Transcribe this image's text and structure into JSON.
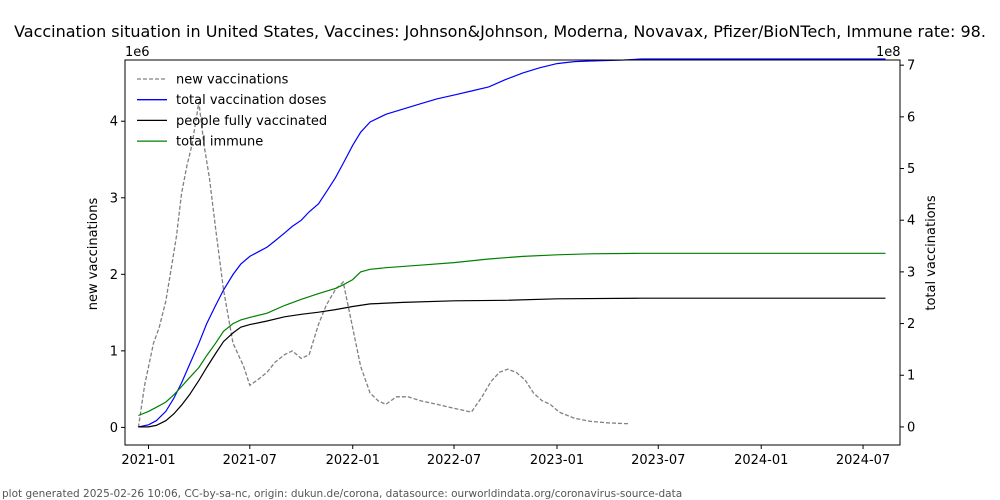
{
  "chart_data": {
    "type": "line",
    "title": "Vaccination situation in United States, Vaccines: Johnson&Johnson, Moderna, Novavax, Pfizer/BioNTech, Immune rate: 98.",
    "xlabel": "",
    "ylabel_left": "new vaccinations",
    "ylabel_right": "total vaccinations",
    "left_offset_text": "1e6",
    "right_offset_text": "1e8",
    "x_ticks": [
      "2021-01",
      "2021-07",
      "2022-01",
      "2022-07",
      "2023-01",
      "2023-07",
      "2024-01",
      "2024-07"
    ],
    "x_range": [
      "2020-11-20",
      "2024-09-05"
    ],
    "ylim_left": [
      -0.23,
      4.8
    ],
    "yticks_left": [
      0,
      1,
      2,
      3,
      4
    ],
    "ylim_right": [
      -0.35,
      7.1
    ],
    "yticks_right": [
      0,
      1,
      2,
      3,
      4,
      5,
      6,
      7
    ],
    "legend_position": "top-left",
    "grid": false,
    "colors": {
      "new vaccinations": "#808080",
      "total vaccination doses": "#0000ff",
      "people fully vaccinated": "#000000",
      "total immune": "#008000"
    },
    "series": [
      {
        "name": "new vaccinations",
        "axis": "left",
        "style": "dashed",
        "x": [
          "2020-12-14",
          "2020-12-25",
          "2021-01-10",
          "2021-01-20",
          "2021-02-01",
          "2021-02-10",
          "2021-02-20",
          "2021-03-01",
          "2021-03-10",
          "2021-03-20",
          "2021-04-01",
          "2021-04-10",
          "2021-04-20",
          "2021-05-01",
          "2021-05-15",
          "2021-06-01",
          "2021-06-20",
          "2021-07-01",
          "2021-07-15",
          "2021-08-01",
          "2021-08-15",
          "2021-09-01",
          "2021-09-15",
          "2021-10-01",
          "2021-10-15",
          "2021-11-01",
          "2021-11-15",
          "2021-12-01",
          "2021-12-15",
          "2022-01-01",
          "2022-01-15",
          "2022-02-01",
          "2022-02-15",
          "2022-03-01",
          "2022-03-20",
          "2022-04-10",
          "2022-05-01",
          "2022-06-01",
          "2022-07-01",
          "2022-08-01",
          "2022-08-20",
          "2022-09-05",
          "2022-09-20",
          "2022-10-05",
          "2022-10-20",
          "2022-11-05",
          "2022-11-20",
          "2022-12-05",
          "2022-12-20",
          "2023-01-05",
          "2023-02-01",
          "2023-03-01",
          "2023-04-01",
          "2023-05-01",
          "2023-05-10"
        ],
        "values": [
          0.0,
          0.55,
          1.1,
          1.3,
          1.65,
          2.05,
          2.5,
          3.05,
          3.4,
          3.7,
          4.25,
          3.7,
          3.25,
          2.6,
          1.8,
          1.1,
          0.8,
          0.55,
          0.62,
          0.72,
          0.85,
          0.95,
          1.0,
          0.9,
          0.95,
          1.35,
          1.6,
          1.8,
          1.9,
          1.3,
          0.8,
          0.45,
          0.35,
          0.3,
          0.4,
          0.4,
          0.35,
          0.3,
          0.25,
          0.2,
          0.4,
          0.6,
          0.72,
          0.76,
          0.72,
          0.62,
          0.45,
          0.35,
          0.3,
          0.2,
          0.12,
          0.08,
          0.06,
          0.05,
          0.05
        ]
      },
      {
        "name": "total vaccination doses",
        "axis": "right",
        "style": "solid",
        "x": [
          "2020-12-14",
          "2021-01-01",
          "2021-01-15",
          "2021-02-01",
          "2021-02-15",
          "2021-03-01",
          "2021-03-15",
          "2021-04-01",
          "2021-04-15",
          "2021-05-01",
          "2021-05-15",
          "2021-06-01",
          "2021-06-15",
          "2021-07-01",
          "2021-07-15",
          "2021-08-01",
          "2021-08-15",
          "2021-09-01",
          "2021-09-15",
          "2021-10-01",
          "2021-10-15",
          "2021-11-01",
          "2021-11-15",
          "2021-12-01",
          "2021-12-15",
          "2022-01-01",
          "2022-01-15",
          "2022-02-01",
          "2022-03-01",
          "2022-04-01",
          "2022-05-01",
          "2022-06-01",
          "2022-07-01",
          "2022-08-01",
          "2022-09-01",
          "2022-10-01",
          "2022-11-01",
          "2022-12-01",
          "2023-01-01",
          "2023-02-01",
          "2023-03-01",
          "2023-05-01",
          "2023-06-01",
          "2024-08-10"
        ],
        "values": [
          0.0,
          0.04,
          0.12,
          0.3,
          0.55,
          0.85,
          1.2,
          1.62,
          2.0,
          2.35,
          2.65,
          2.95,
          3.15,
          3.3,
          3.38,
          3.48,
          3.6,
          3.75,
          3.88,
          4.0,
          4.16,
          4.32,
          4.55,
          4.82,
          5.1,
          5.45,
          5.7,
          5.9,
          6.05,
          6.15,
          6.25,
          6.35,
          6.42,
          6.5,
          6.58,
          6.72,
          6.85,
          6.95,
          7.03,
          7.07,
          7.08,
          7.1,
          7.12,
          7.12
        ]
      },
      {
        "name": "people fully vaccinated",
        "axis": "right",
        "style": "solid",
        "x": [
          "2020-12-14",
          "2021-01-01",
          "2021-01-15",
          "2021-02-01",
          "2021-02-15",
          "2021-03-01",
          "2021-03-15",
          "2021-04-01",
          "2021-04-15",
          "2021-05-01",
          "2021-05-15",
          "2021-06-01",
          "2021-06-15",
          "2021-07-01",
          "2021-08-01",
          "2021-09-01",
          "2021-10-01",
          "2021-11-01",
          "2021-12-01",
          "2022-01-01",
          "2022-02-01",
          "2022-04-01",
          "2022-07-01",
          "2022-10-01",
          "2023-01-01",
          "2023-06-01",
          "2024-08-10"
        ],
        "values": [
          0.0,
          0.0,
          0.03,
          0.12,
          0.25,
          0.42,
          0.62,
          0.9,
          1.15,
          1.42,
          1.65,
          1.82,
          1.93,
          1.98,
          2.05,
          2.13,
          2.18,
          2.22,
          2.27,
          2.33,
          2.38,
          2.41,
          2.44,
          2.45,
          2.48,
          2.49,
          2.49
        ]
      },
      {
        "name": "total immune",
        "axis": "right",
        "style": "solid",
        "x": [
          "2020-12-14",
          "2021-01-01",
          "2021-01-15",
          "2021-02-01",
          "2021-02-15",
          "2021-03-01",
          "2021-03-15",
          "2021-04-01",
          "2021-04-15",
          "2021-05-01",
          "2021-05-15",
          "2021-06-01",
          "2021-06-15",
          "2021-07-01",
          "2021-08-01",
          "2021-09-01",
          "2021-10-01",
          "2021-11-01",
          "2021-12-01",
          "2021-12-15",
          "2022-01-01",
          "2022-01-15",
          "2022-02-01",
          "2022-03-01",
          "2022-05-01",
          "2022-07-01",
          "2022-09-01",
          "2022-11-01",
          "2023-01-01",
          "2023-03-01",
          "2023-06-01",
          "2024-08-10"
        ],
        "values": [
          0.22,
          0.3,
          0.38,
          0.48,
          0.62,
          0.78,
          0.95,
          1.15,
          1.38,
          1.62,
          1.85,
          2.0,
          2.07,
          2.12,
          2.2,
          2.35,
          2.47,
          2.58,
          2.68,
          2.75,
          2.85,
          3.0,
          3.05,
          3.08,
          3.13,
          3.18,
          3.25,
          3.3,
          3.33,
          3.35,
          3.36,
          3.36
        ]
      }
    ],
    "footer": "plot generated 2025-02-26 10:06, CC-by-sa-nc, origin: dukun.de/corona, datasource: ourworldindata.org/coronavirus-source-data"
  }
}
